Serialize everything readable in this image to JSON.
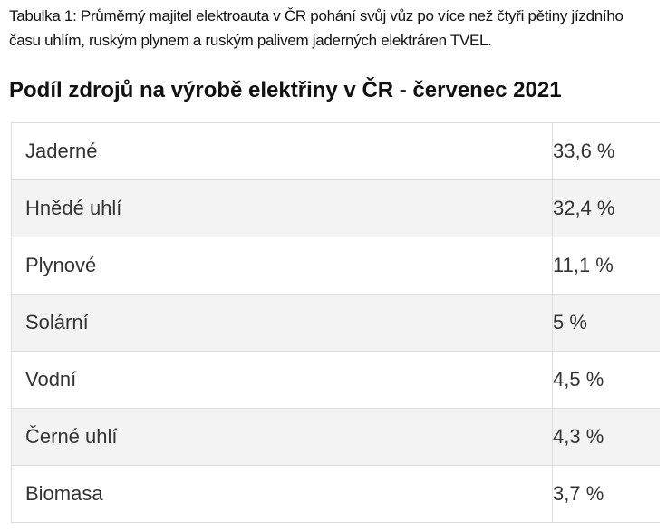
{
  "caption": "Tabulka 1: Průměrný majitel elektroauta v ČR pohání svůj vůz po více než čtyři pětiny jízdního času uhlím, ruským plynem a ruským palivem jaderných elektráren TVEL.",
  "table": {
    "title": "Podíl zdrojů na výrobě elektřiny v ČR - červenec 2021",
    "rows": [
      [
        "Jaderné",
        "33,6 %"
      ],
      [
        "Hnědé uhlí",
        "32,4 %"
      ],
      [
        "Plynové",
        "11,1 %"
      ],
      [
        "Solární",
        "5 %"
      ],
      [
        "Vodní",
        "4,5 %"
      ],
      [
        "Černé uhlí",
        "4,3 %"
      ],
      [
        "Biomasa",
        "3,7 %"
      ]
    ]
  }
}
